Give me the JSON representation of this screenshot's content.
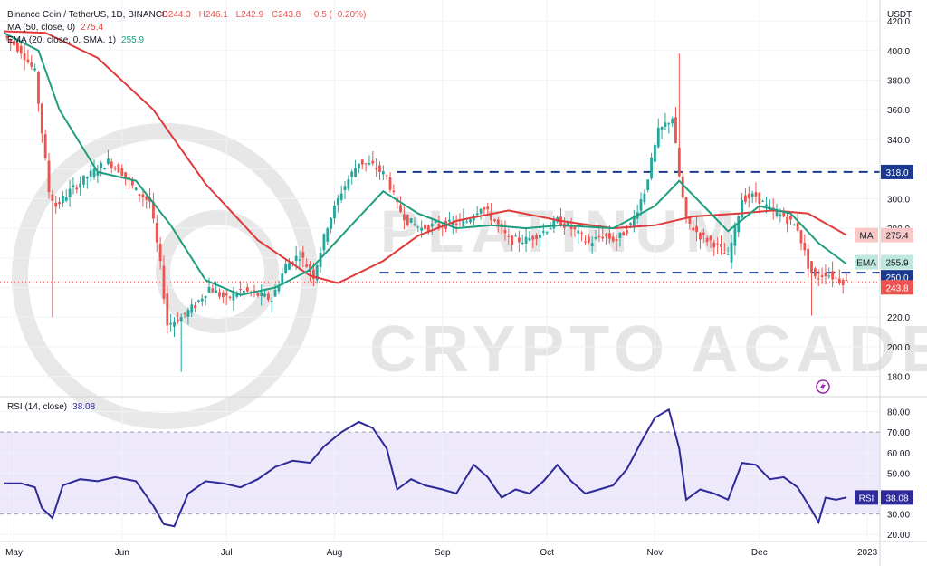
{
  "header": {
    "symbol": "Binance Coin / TetherUS, 1D, BINANCE",
    "open": "O244.3",
    "high": "H246.1",
    "low": "L242.9",
    "close": "C243.8",
    "change": "−0.5 (−0.20%)",
    "ma_label": "MA (50, close, 0)",
    "ma_value": "275.4",
    "ema_label": "EMA (20, close, 0, SMA, 1)",
    "ema_value": "255.9",
    "rsi_label": "RSI (14, close)",
    "rsi_value": "38.08"
  },
  "colors": {
    "up": "#26a69a",
    "down": "#ef5350",
    "ma": "#e03b3b",
    "ema": "#1f9e7f",
    "rsi": "#2e2a98",
    "rsi_band": "#ede9fb",
    "level": "#1b3a8f",
    "price_tag": "#ef5350"
  },
  "watermark": {
    "brand": "PLATINUM",
    "sub": "CRYPTO ACADEMY"
  },
  "chart_data": [
    {
      "type": "candlestick",
      "currency_label": "USDT",
      "ylim": [
        170,
        428
      ],
      "y_ticks": [
        "420.0",
        "400.0",
        "380.0",
        "360.0",
        "340.0",
        "320.0",
        "300.0",
        "280.0",
        "260.0",
        "240.0",
        "220.0",
        "200.0",
        "180.0"
      ],
      "x_labels": [
        "May",
        "Jun",
        "Jul",
        "Aug",
        "Sep",
        "Oct",
        "Nov",
        "Dec",
        "2023"
      ],
      "x_label_dates": [
        "2022-05-01",
        "2022-06-01",
        "2022-07-01",
        "2022-08-01",
        "2022-09-01",
        "2022-10-01",
        "2022-11-01",
        "2022-12-01",
        "2023-01-01"
      ],
      "date_range": [
        "2022-04-28",
        "2022-12-26"
      ],
      "levels": [
        {
          "value": 318.0,
          "label": "318.0"
        },
        {
          "value": 250.0,
          "label": "250.0"
        }
      ],
      "tags": {
        "ma": {
          "label": "MA",
          "value": "275.4"
        },
        "ema": {
          "label": "EMA",
          "value": "255.9"
        },
        "last": {
          "value": "243.8"
        }
      },
      "close_path": [
        [
          "2022-04-28",
          410
        ],
        [
          "2022-05-03",
          400
        ],
        [
          "2022-05-07",
          385
        ],
        [
          "2022-05-11",
          305
        ],
        [
          "2022-05-13",
          295
        ],
        [
          "2022-05-17",
          305
        ],
        [
          "2022-05-22",
          315
        ],
        [
          "2022-05-28",
          325
        ],
        [
          "2022-06-01",
          318
        ],
        [
          "2022-06-05",
          305
        ],
        [
          "2022-06-09",
          298
        ],
        [
          "2022-06-12",
          255
        ],
        [
          "2022-06-14",
          215
        ],
        [
          "2022-06-18",
          220
        ],
        [
          "2022-06-22",
          228
        ],
        [
          "2022-06-26",
          240
        ],
        [
          "2022-07-01",
          232
        ],
        [
          "2022-07-05",
          238
        ],
        [
          "2022-07-10",
          235
        ],
        [
          "2022-07-14",
          232
        ],
        [
          "2022-07-18",
          255
        ],
        [
          "2022-07-22",
          262
        ],
        [
          "2022-07-26",
          248
        ],
        [
          "2022-07-30",
          282
        ],
        [
          "2022-08-03",
          305
        ],
        [
          "2022-08-08",
          325
        ],
        [
          "2022-08-12",
          322
        ],
        [
          "2022-08-16",
          315
        ],
        [
          "2022-08-19",
          295
        ],
        [
          "2022-08-22",
          285
        ],
        [
          "2022-08-26",
          280
        ],
        [
          "2022-08-30",
          282
        ],
        [
          "2022-09-04",
          283
        ],
        [
          "2022-09-08",
          285
        ],
        [
          "2022-09-12",
          295
        ],
        [
          "2022-09-16",
          285
        ],
        [
          "2022-09-20",
          272
        ],
        [
          "2022-09-25",
          272
        ],
        [
          "2022-09-30",
          278
        ],
        [
          "2022-10-04",
          285
        ],
        [
          "2022-10-08",
          280
        ],
        [
          "2022-10-13",
          270
        ],
        [
          "2022-10-17",
          275
        ],
        [
          "2022-10-21",
          272
        ],
        [
          "2022-10-25",
          282
        ],
        [
          "2022-10-29",
          305
        ],
        [
          "2022-11-02",
          345
        ],
        [
          "2022-11-06",
          355
        ],
        [
          "2022-11-08",
          315
        ],
        [
          "2022-11-10",
          285
        ],
        [
          "2022-11-14",
          275
        ],
        [
          "2022-11-18",
          270
        ],
        [
          "2022-11-22",
          260
        ],
        [
          "2022-11-26",
          300
        ],
        [
          "2022-11-30",
          302
        ],
        [
          "2022-12-04",
          292
        ],
        [
          "2022-12-08",
          288
        ],
        [
          "2022-12-12",
          280
        ],
        [
          "2022-12-15",
          255
        ],
        [
          "2022-12-17",
          246
        ],
        [
          "2022-12-20",
          250
        ],
        [
          "2022-12-23",
          246
        ],
        [
          "2022-12-26",
          243.8
        ]
      ],
      "ma50": [
        [
          "2022-04-28",
          413
        ],
        [
          "2022-05-10",
          412
        ],
        [
          "2022-05-25",
          395
        ],
        [
          "2022-06-10",
          360
        ],
        [
          "2022-06-25",
          310
        ],
        [
          "2022-07-10",
          272
        ],
        [
          "2022-07-25",
          248
        ],
        [
          "2022-08-02",
          243
        ],
        [
          "2022-08-15",
          258
        ],
        [
          "2022-08-25",
          275
        ],
        [
          "2022-09-05",
          285
        ],
        [
          "2022-09-20",
          292
        ],
        [
          "2022-10-05",
          285
        ],
        [
          "2022-10-20",
          280
        ],
        [
          "2022-11-01",
          282
        ],
        [
          "2022-11-12",
          288
        ],
        [
          "2022-11-25",
          290
        ],
        [
          "2022-12-05",
          292
        ],
        [
          "2022-12-15",
          290
        ],
        [
          "2022-12-26",
          275.4
        ]
      ],
      "ema20": [
        [
          "2022-04-28",
          412
        ],
        [
          "2022-05-08",
          400
        ],
        [
          "2022-05-14",
          360
        ],
        [
          "2022-05-25",
          318
        ],
        [
          "2022-06-05",
          312
        ],
        [
          "2022-06-15",
          282
        ],
        [
          "2022-06-25",
          245
        ],
        [
          "2022-07-05",
          235
        ],
        [
          "2022-07-15",
          240
        ],
        [
          "2022-07-25",
          252
        ],
        [
          "2022-08-05",
          280
        ],
        [
          "2022-08-15",
          305
        ],
        [
          "2022-08-25",
          290
        ],
        [
          "2022-09-05",
          280
        ],
        [
          "2022-09-15",
          282
        ],
        [
          "2022-09-25",
          280
        ],
        [
          "2022-10-05",
          282
        ],
        [
          "2022-10-20",
          280
        ],
        [
          "2022-11-01",
          295
        ],
        [
          "2022-11-08",
          312
        ],
        [
          "2022-11-15",
          295
        ],
        [
          "2022-11-22",
          278
        ],
        [
          "2022-12-01",
          295
        ],
        [
          "2022-12-10",
          290
        ],
        [
          "2022-12-18",
          270
        ],
        [
          "2022-12-26",
          255.9
        ]
      ]
    },
    {
      "type": "line",
      "name": "RSI",
      "ylim": [
        17,
        86
      ],
      "y_ticks": [
        "80.00",
        "70.00",
        "60.00",
        "50.00",
        "40.00",
        "30.00",
        "20.00"
      ],
      "band": [
        30,
        70
      ],
      "tag": {
        "label": "RSI",
        "value": "38.08"
      },
      "series": [
        [
          "2022-04-28",
          45
        ],
        [
          "2022-05-03",
          45
        ],
        [
          "2022-05-07",
          43
        ],
        [
          "2022-05-09",
          33
        ],
        [
          "2022-05-12",
          28
        ],
        [
          "2022-05-15",
          44
        ],
        [
          "2022-05-20",
          47
        ],
        [
          "2022-05-25",
          46
        ],
        [
          "2022-05-30",
          48
        ],
        [
          "2022-06-05",
          46
        ],
        [
          "2022-06-10",
          34
        ],
        [
          "2022-06-13",
          25
        ],
        [
          "2022-06-16",
          24
        ],
        [
          "2022-06-20",
          40
        ],
        [
          "2022-06-25",
          46
        ],
        [
          "2022-06-30",
          45
        ],
        [
          "2022-07-05",
          43
        ],
        [
          "2022-07-10",
          47
        ],
        [
          "2022-07-15",
          53
        ],
        [
          "2022-07-20",
          56
        ],
        [
          "2022-07-25",
          55
        ],
        [
          "2022-07-29",
          63
        ],
        [
          "2022-08-03",
          70
        ],
        [
          "2022-08-08",
          75
        ],
        [
          "2022-08-12",
          72
        ],
        [
          "2022-08-16",
          62
        ],
        [
          "2022-08-19",
          42
        ],
        [
          "2022-08-23",
          47
        ],
        [
          "2022-08-27",
          44
        ],
        [
          "2022-09-01",
          42
        ],
        [
          "2022-09-05",
          40
        ],
        [
          "2022-09-10",
          54
        ],
        [
          "2022-09-14",
          48
        ],
        [
          "2022-09-18",
          38
        ],
        [
          "2022-09-22",
          42
        ],
        [
          "2022-09-26",
          40
        ],
        [
          "2022-09-30",
          46
        ],
        [
          "2022-10-04",
          54
        ],
        [
          "2022-10-08",
          46
        ],
        [
          "2022-10-12",
          40
        ],
        [
          "2022-10-16",
          42
        ],
        [
          "2022-10-20",
          44
        ],
        [
          "2022-10-24",
          52
        ],
        [
          "2022-10-28",
          65
        ],
        [
          "2022-11-01",
          77
        ],
        [
          "2022-11-05",
          81
        ],
        [
          "2022-11-08",
          62
        ],
        [
          "2022-11-10",
          37
        ],
        [
          "2022-11-14",
          42
        ],
        [
          "2022-11-18",
          40
        ],
        [
          "2022-11-22",
          37
        ],
        [
          "2022-11-26",
          55
        ],
        [
          "2022-11-30",
          54
        ],
        [
          "2022-12-04",
          47
        ],
        [
          "2022-12-08",
          48
        ],
        [
          "2022-12-12",
          43
        ],
        [
          "2022-12-16",
          32
        ],
        [
          "2022-12-18",
          26
        ],
        [
          "2022-12-20",
          38
        ],
        [
          "2022-12-23",
          37
        ],
        [
          "2022-12-26",
          38.08
        ]
      ]
    }
  ]
}
